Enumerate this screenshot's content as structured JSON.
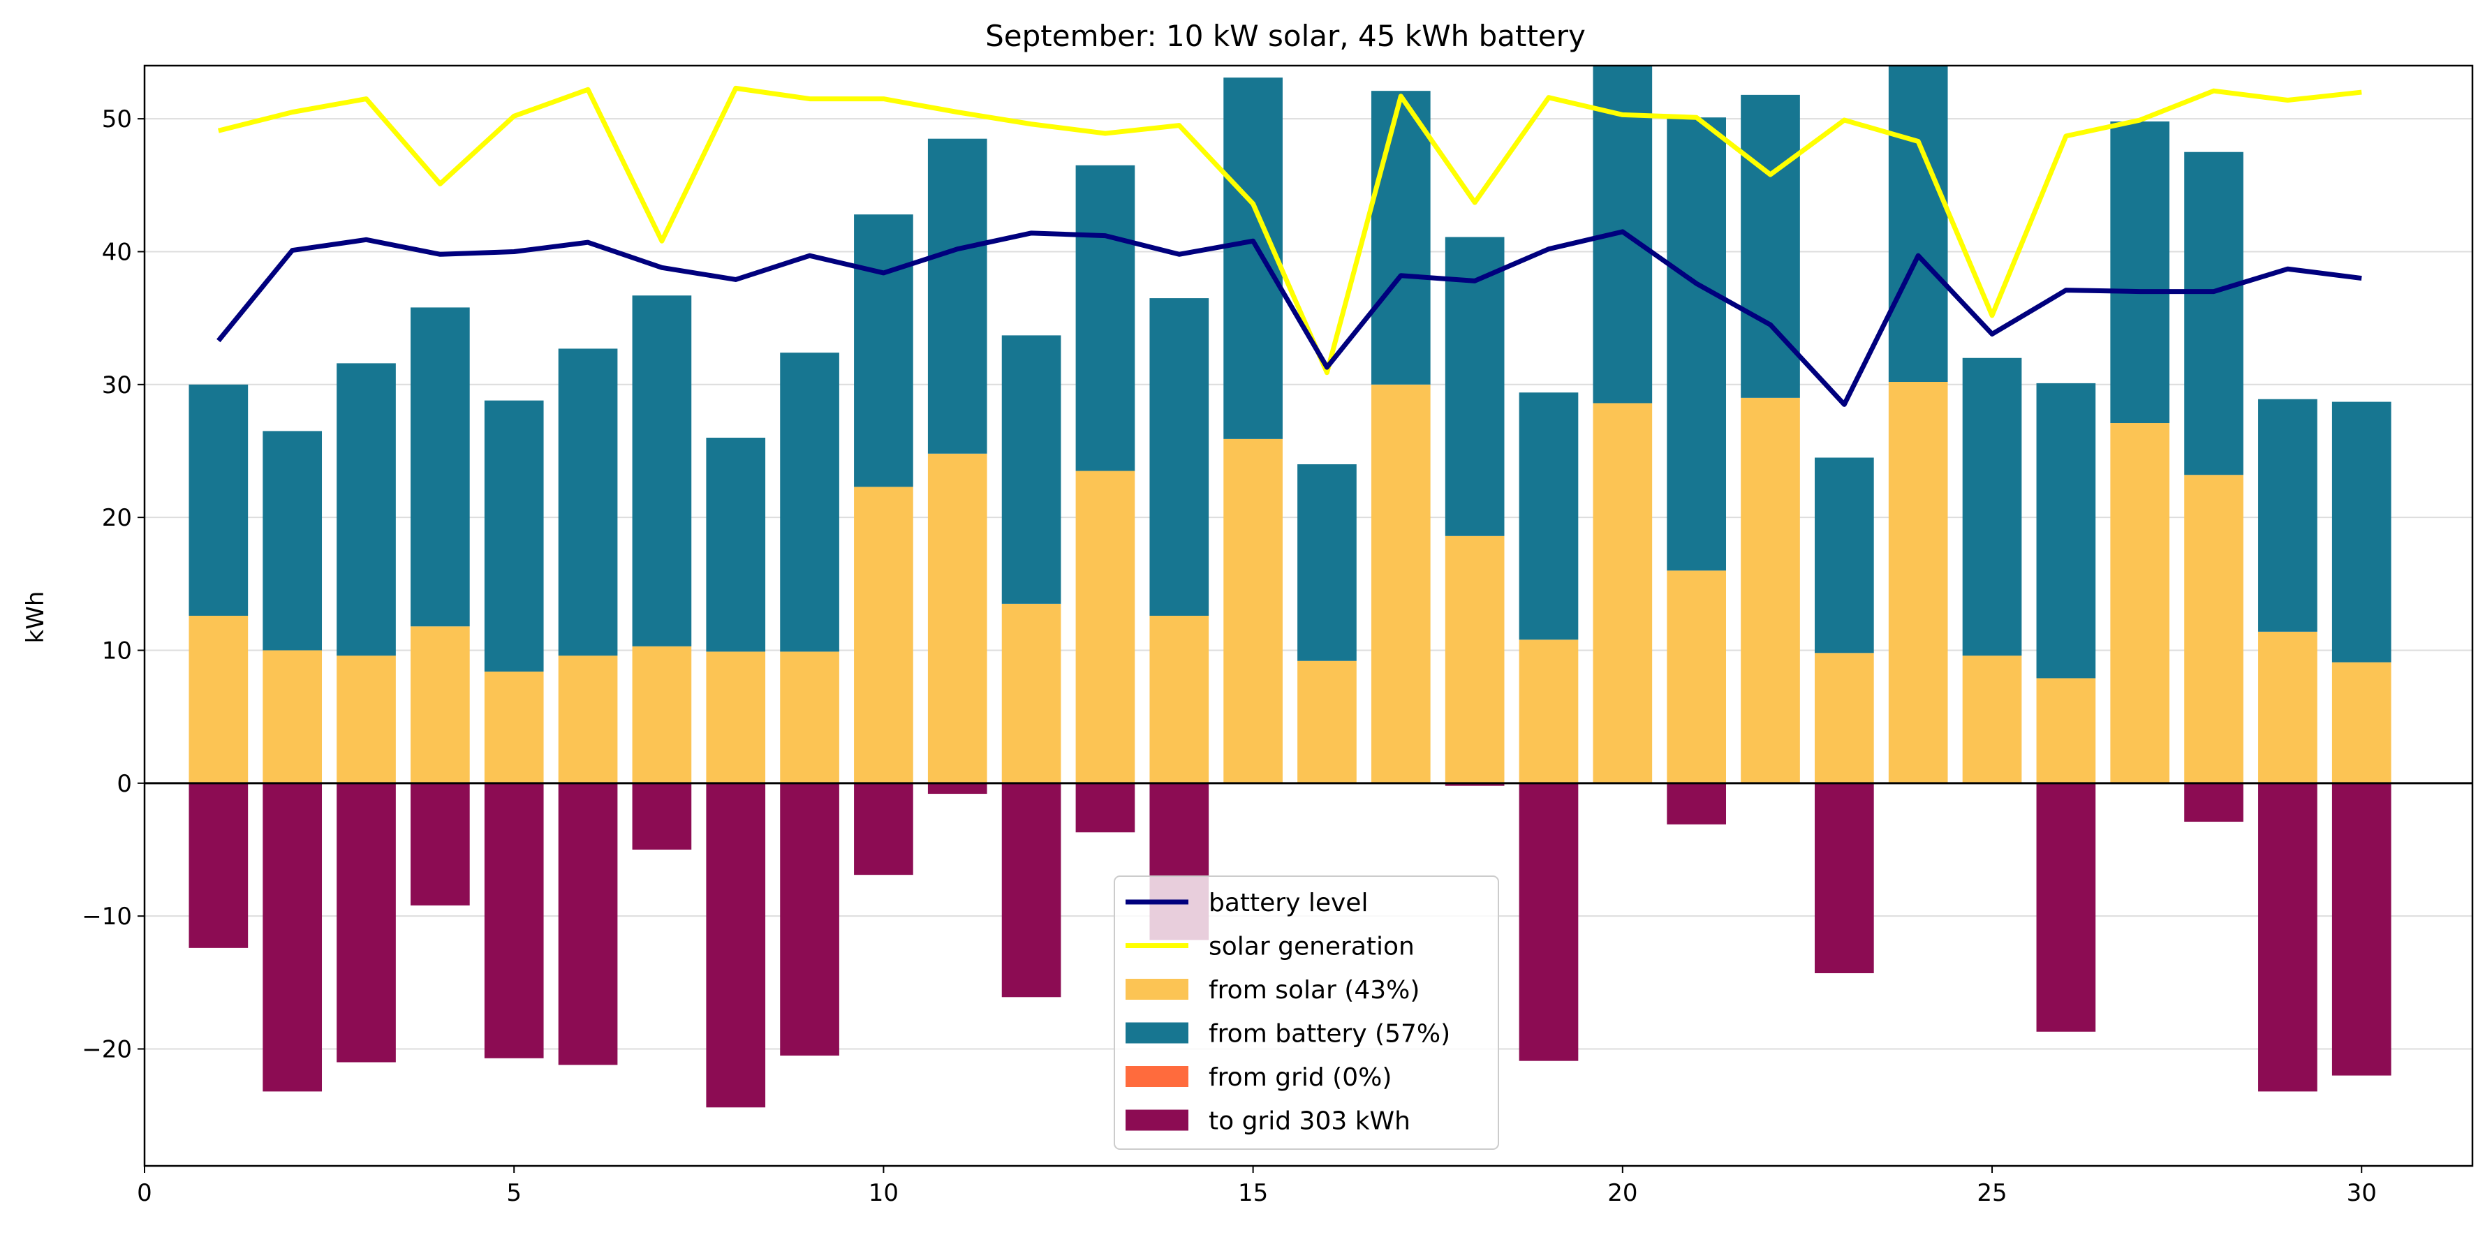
{
  "chart_data": {
    "type": "bar",
    "title": "September: 10 kW solar, 45 kWh battery",
    "xlabel": "",
    "ylabel": "kWh",
    "xlim": [
      0,
      31.5
    ],
    "ylim": [
      -28.8,
      54
    ],
    "xticks": [
      "0",
      "5",
      "10",
      "15",
      "20",
      "25",
      "30"
    ],
    "yticks": [
      "−20",
      "−10",
      "0",
      "10",
      "20",
      "30",
      "40",
      "50"
    ],
    "grid": "horizontal",
    "legend_position": "bottom-center",
    "x": [
      1,
      2,
      3,
      4,
      5,
      6,
      7,
      8,
      9,
      10,
      11,
      12,
      13,
      14,
      15,
      16,
      17,
      18,
      19,
      20,
      21,
      22,
      23,
      24,
      25,
      26,
      27,
      28,
      29,
      30
    ],
    "series": [
      {
        "name": "from solar (43%)",
        "kind": "bar",
        "color": "#fcc454",
        "values": [
          12.6,
          10.0,
          9.6,
          11.8,
          8.4,
          9.6,
          10.3,
          9.9,
          9.9,
          22.3,
          24.8,
          13.5,
          23.5,
          12.6,
          25.9,
          9.2,
          30.0,
          18.6,
          10.8,
          28.6,
          16.0,
          29.0,
          9.8,
          30.2,
          9.6,
          7.9,
          27.1,
          23.2,
          11.4,
          9.1
        ]
      },
      {
        "name": "from battery (57%)",
        "kind": "bar",
        "color": "#177691",
        "values": [
          17.4,
          16.5,
          22.0,
          24.0,
          20.4,
          23.1,
          26.4,
          16.1,
          22.5,
          20.5,
          23.7,
          20.2,
          23.0,
          23.9,
          27.2,
          14.8,
          22.1,
          22.5,
          18.6,
          27.9,
          34.1,
          22.8,
          14.7,
          26.2,
          22.4,
          22.2,
          22.7,
          24.3,
          17.5,
          19.6
        ]
      },
      {
        "name": "from grid (0%)",
        "kind": "bar",
        "color": "#ff6b3d",
        "values": [
          0,
          0,
          0,
          0,
          0,
          0,
          0,
          0,
          0,
          0,
          0,
          0,
          0,
          0,
          0,
          0,
          0,
          0,
          0,
          0,
          0,
          0,
          0,
          0,
          0,
          0,
          0,
          0,
          0,
          0
        ]
      },
      {
        "name": "to grid 303 kWh",
        "kind": "bar",
        "color": "#8c0c53",
        "values": [
          -12.4,
          -23.2,
          -21.0,
          -9.2,
          -20.7,
          -21.2,
          -5.0,
          -24.4,
          -20.5,
          -6.9,
          -0.8,
          -16.1,
          -3.7,
          -11.8,
          0,
          0,
          0,
          -0.2,
          -20.9,
          0,
          -3.1,
          0,
          -14.3,
          0,
          0,
          -18.7,
          0,
          -2.9,
          -23.2,
          -22.0
        ]
      },
      {
        "name": "battery level",
        "kind": "line",
        "color": "#00007d",
        "values": [
          33.3,
          40.1,
          40.9,
          39.8,
          40.0,
          40.7,
          38.8,
          37.9,
          39.7,
          38.4,
          40.2,
          41.4,
          41.2,
          39.8,
          40.8,
          31.3,
          38.2,
          37.8,
          40.2,
          41.5,
          37.6,
          34.5,
          28.5,
          39.7,
          33.8,
          37.1,
          37.0,
          37.0,
          38.7,
          38.0
        ]
      },
      {
        "name": "solar generation",
        "kind": "line",
        "color": "#ffff00",
        "values": [
          49.1,
          50.5,
          51.5,
          45.1,
          50.2,
          52.2,
          40.8,
          52.3,
          51.5,
          51.5,
          50.5,
          49.6,
          48.9,
          49.5,
          43.6,
          30.9,
          51.7,
          43.7,
          51.6,
          50.3,
          50.1,
          45.8,
          49.9,
          48.3,
          35.2,
          48.7,
          49.9,
          52.1,
          51.4,
          52.0
        ]
      }
    ],
    "legend": [
      "battery level",
      "solar generation",
      "from solar (43%)",
      "from battery (57%)",
      "from grid (0%)",
      "to grid 303 kWh"
    ]
  }
}
